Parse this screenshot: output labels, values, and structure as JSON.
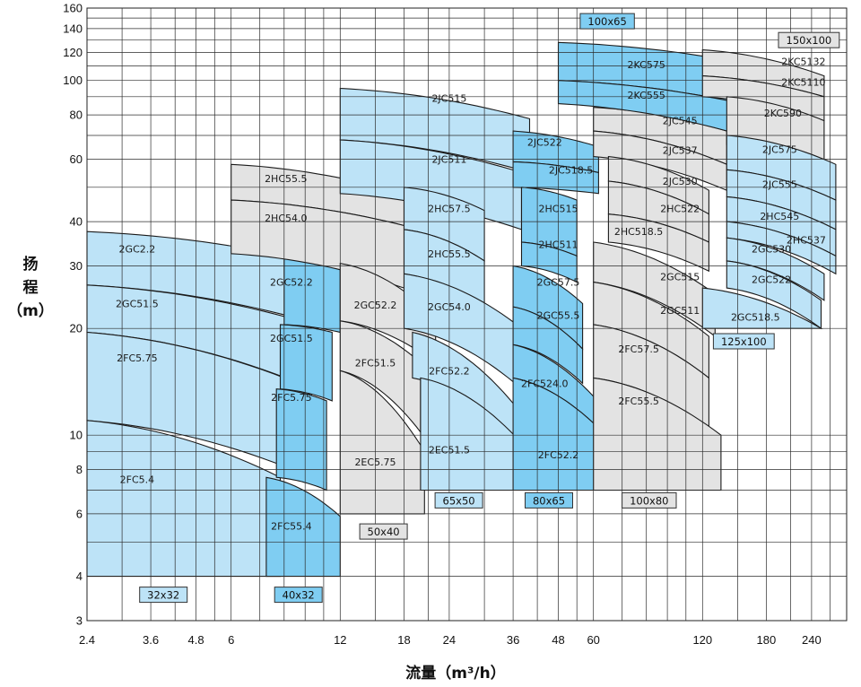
{
  "chart_data": {
    "type": "area",
    "xlabel": "流量（m³/h）",
    "ylabel_chars": [
      "扬",
      "程",
      "（m）"
    ],
    "x_scale": "log",
    "y_scale": "log",
    "xlim": [
      2.4,
      300
    ],
    "ylim": [
      3,
      160
    ],
    "x_ticks": [
      2.4,
      3.6,
      4.8,
      6,
      12,
      18,
      24,
      36,
      48,
      60,
      120,
      180,
      240
    ],
    "y_ticks": [
      3,
      4,
      6,
      8,
      10,
      20,
      30,
      40,
      60,
      80,
      100,
      120,
      140,
      160
    ],
    "x_grid": [
      2.4,
      3,
      3.6,
      4.2,
      4.8,
      5.4,
      6,
      7.2,
      8.4,
      9.6,
      10.8,
      12,
      15,
      18,
      21,
      24,
      30,
      36,
      42,
      48,
      54,
      60,
      72,
      84,
      96,
      108,
      120,
      150,
      180,
      210,
      240,
      270
    ],
    "y_grid": [
      3,
      4,
      5,
      6,
      7,
      8,
      9,
      10,
      20,
      30,
      40,
      50,
      60,
      70,
      80,
      90,
      100,
      110,
      120,
      130,
      140,
      150,
      160
    ],
    "colors": {
      "light_blue": "#bde3f7",
      "mid_blue": "#7fcdf2",
      "gray": "#e3e3e3"
    },
    "pump_sizes": [
      {
        "label": "32x32",
        "q": 3.9,
        "h": 3.55,
        "color": "light_blue"
      },
      {
        "label": "40x32",
        "q": 9.2,
        "h": 3.55,
        "color": "mid_blue"
      },
      {
        "label": "50x40",
        "q": 15.8,
        "h": 5.35,
        "color": "gray"
      },
      {
        "label": "65x50",
        "q": 25.5,
        "h": 6.55,
        "color": "light_blue"
      },
      {
        "label": "80x65",
        "q": 45.2,
        "h": 6.55,
        "color": "mid_blue"
      },
      {
        "label": "100x80",
        "q": 85.5,
        "h": 6.55,
        "color": "gray"
      },
      {
        "label": "125x100",
        "q": 156,
        "h": 18.4,
        "color": "light_blue"
      },
      {
        "label": "100x65",
        "q": 65.5,
        "h": 147,
        "color": "mid_blue"
      },
      {
        "label": "150x100",
        "q": 236,
        "h": 130,
        "color": "gray"
      }
    ],
    "series": [
      {
        "name": "2GC2.2",
        "label_q": 3.3,
        "label_h": 33.5,
        "color": "light_blue",
        "q": [
          2.4,
          10.6
        ],
        "top": [
          37.5,
          30.5
        ],
        "bottom": [
          26.5,
          20.5
        ]
      },
      {
        "name": "2GC51.5",
        "label_q": 3.3,
        "label_h": 23.5,
        "color": "light_blue",
        "q": [
          2.4,
          10.1
        ],
        "top": [
          26.5,
          20.5
        ],
        "bottom": [
          19.5,
          13.5
        ]
      },
      {
        "name": "2FC5.75",
        "label_q": 3.3,
        "label_h": 16.5,
        "color": "light_blue",
        "q": [
          2.4,
          10.0
        ],
        "top": [
          19.5,
          13.5
        ],
        "bottom": [
          11.0,
          7.6
        ]
      },
      {
        "name": "2FC5.4",
        "label_q": 3.3,
        "label_h": 7.5,
        "color": "light_blue",
        "q": [
          2.4,
          8.2
        ],
        "top": [
          11.0,
          7.6
        ],
        "bottom": [
          4.0,
          4.0
        ]
      },
      {
        "name": "2GC52.2",
        "label_q": 8.8,
        "label_h": 27.0,
        "color": "mid_blue",
        "q": [
          8.4,
          12.0
        ],
        "top": [
          32.5,
          30.5
        ],
        "bottom": [
          20.5,
          19.5
        ]
      },
      {
        "name": "2GC51.5",
        "label_q": 8.8,
        "label_h": 18.8,
        "color": "mid_blue",
        "q": [
          8.2,
          11.4
        ],
        "top": [
          20.5,
          19.5
        ],
        "bottom": [
          13.5,
          12.5
        ]
      },
      {
        "name": "2FC5.75",
        "label_q": 8.8,
        "label_h": 12.8,
        "color": "mid_blue",
        "q": [
          8.0,
          11.0
        ],
        "top": [
          13.5,
          12.5
        ],
        "bottom": [
          7.6,
          7.0
        ]
      },
      {
        "name": "2FC55.4",
        "label_q": 8.8,
        "label_h": 5.55,
        "color": "mid_blue",
        "q": [
          7.5,
          12.0
        ],
        "top": [
          7.6,
          5.9
        ],
        "bottom": [
          4.0,
          4.0
        ]
      },
      {
        "name": "2HC55.5",
        "label_q": 8.5,
        "label_h": 53.0,
        "color": "gray",
        "q": [
          6.0,
          18.0
        ],
        "top": [
          58.0,
          48.0
        ],
        "bottom": [
          46.0,
          39.0
        ]
      },
      {
        "name": "2HC54.0",
        "label_q": 8.5,
        "label_h": 41.0,
        "color": "gray",
        "q": [
          6.0,
          18.0
        ],
        "top": [
          46.0,
          39.0
        ],
        "bottom": [
          32.5,
          26.0
        ]
      },
      {
        "name": "2GC52.2",
        "label_q": 15.0,
        "label_h": 23.3,
        "color": "gray",
        "q": [
          12.0,
          22.0
        ],
        "top": [
          30.5,
          21.5
        ],
        "bottom": [
          21.0,
          16.0
        ]
      },
      {
        "name": "2FC51.5",
        "label_q": 15.0,
        "label_h": 16.0,
        "color": "gray",
        "q": [
          12.0,
          20.0
        ],
        "top": [
          21.0,
          16.0
        ],
        "bottom": [
          15.2,
          10.2
        ]
      },
      {
        "name": "2EC5.75",
        "label_q": 15.0,
        "label_h": 8.4,
        "color": "gray",
        "q": [
          12.0,
          20.5
        ],
        "top": [
          15.2,
          9.0
        ],
        "bottom": [
          6.0,
          6.0
        ]
      },
      {
        "name": "2JC515",
        "label_q": 24.0,
        "label_h": 89.0,
        "color": "light_blue",
        "q": [
          12.0,
          40.0
        ],
        "top": [
          95.0,
          78.0
        ],
        "bottom": [
          68.0,
          55.0
        ]
      },
      {
        "name": "2JC511",
        "label_q": 24.0,
        "label_h": 60.0,
        "color": "light_blue",
        "q": [
          12.0,
          38.0
        ],
        "top": [
          68.0,
          55.0
        ],
        "bottom": [
          48.0,
          38.0
        ]
      },
      {
        "name": "2HC57.5",
        "label_q": 24.0,
        "label_h": 43.5,
        "color": "light_blue",
        "q": [
          18.0,
          30.0
        ],
        "top": [
          50.0,
          43.0
        ],
        "bottom": [
          38.0,
          31.0
        ]
      },
      {
        "name": "2HC55.5",
        "label_q": 24.0,
        "label_h": 32.5,
        "color": "light_blue",
        "q": [
          18.0,
          30.0
        ],
        "top": [
          38.0,
          31.0
        ],
        "bottom": [
          28.5,
          22.5
        ]
      },
      {
        "name": "2GC54.0",
        "label_q": 24.0,
        "label_h": 23.0,
        "color": "light_blue",
        "q": [
          18.0,
          38.0
        ],
        "top": [
          28.5,
          20.0
        ],
        "bottom": [
          20.0,
          13.5
        ]
      },
      {
        "name": "2FC52.2",
        "label_q": 24.0,
        "label_h": 15.2,
        "color": "light_blue",
        "q": [
          19.0,
          38.0
        ],
        "top": [
          19.5,
          11.5
        ],
        "bottom": [
          14.5,
          9.5
        ]
      },
      {
        "name": "2EC51.5",
        "label_q": 24.0,
        "label_h": 9.1,
        "color": "light_blue",
        "q": [
          20.0,
          38.0
        ],
        "top": [
          14.5,
          9.5
        ],
        "bottom": [
          7.0,
          7.0
        ]
      },
      {
        "name": "2JC522",
        "label_q": 44.0,
        "label_h": 67.0,
        "color": "mid_blue",
        "q": [
          36.0,
          62.0
        ],
        "top": [
          72.0,
          65.0
        ],
        "bottom": [
          59.0,
          55.0
        ]
      },
      {
        "name": "2JC518.5",
        "label_q": 52.0,
        "label_h": 56.0,
        "color": "mid_blue",
        "q": [
          36.0,
          62.0
        ],
        "top": [
          59.0,
          55.0
        ],
        "bottom": [
          50.0,
          48.0
        ]
      },
      {
        "name": "2HC515",
        "label_q": 48.0,
        "label_h": 43.5,
        "color": "mid_blue",
        "q": [
          38.0,
          54.0
        ],
        "top": [
          50.0,
          46.0
        ],
        "bottom": [
          35.0,
          32.0
        ]
      },
      {
        "name": "2HC511",
        "label_q": 48.0,
        "label_h": 34.5,
        "color": "mid_blue",
        "q": [
          38.0,
          54.0
        ],
        "top": [
          35.0,
          32.0
        ],
        "bottom": [
          30.0,
          27.0
        ]
      },
      {
        "name": "2GC57.5",
        "label_q": 48.0,
        "label_h": 27.0,
        "color": "mid_blue",
        "q": [
          36.0,
          56.0
        ],
        "top": [
          30.0,
          23.5
        ],
        "bottom": [
          23.0,
          17.5
        ]
      },
      {
        "name": "2GC55.5",
        "label_q": 48.0,
        "label_h": 21.8,
        "color": "mid_blue",
        "q": [
          36.0,
          56.0
        ],
        "top": [
          23.0,
          17.5
        ],
        "bottom": [
          18.0,
          14.0
        ]
      },
      {
        "name": "2FC524.0",
        "label_q": 44.0,
        "label_h": 14.0,
        "color": "mid_blue",
        "q": [
          36.0,
          66.0
        ],
        "top": [
          18.0,
          11.5
        ],
        "bottom": [
          14.5,
          9.8
        ]
      },
      {
        "name": "2FC52.2",
        "label_q": 48.0,
        "label_h": 8.8,
        "color": "mid_blue",
        "q": [
          36.0,
          66.0
        ],
        "top": [
          14.5,
          9.8
        ],
        "bottom": [
          7.0,
          7.0
        ]
      },
      {
        "name": "2JC545",
        "label_q": 104.0,
        "label_h": 77.0,
        "color": "gray",
        "q": [
          60.0,
          140.0
        ],
        "top": [
          84.0,
          72.0
        ],
        "bottom": [
          72.0,
          58.0
        ]
      },
      {
        "name": "2JC537",
        "label_q": 104.0,
        "label_h": 63.5,
        "color": "gray",
        "q": [
          60.0,
          140.0
        ],
        "top": [
          72.0,
          58.0
        ],
        "bottom": [
          61.0,
          49.0
        ]
      },
      {
        "name": "2JC530",
        "label_q": 104.0,
        "label_h": 52.0,
        "color": "gray",
        "q": [
          66.0,
          125.0
        ],
        "top": [
          61.0,
          49.0
        ],
        "bottom": [
          52.0,
          42.0
        ]
      },
      {
        "name": "2HC522",
        "label_q": 104.0,
        "label_h": 43.5,
        "color": "gray",
        "q": [
          66.0,
          125.0
        ],
        "top": [
          52.0,
          42.0
        ],
        "bottom": [
          42.0,
          35.0
        ]
      },
      {
        "name": "2HC518.5",
        "label_q": 80.0,
        "label_h": 37.5,
        "color": "gray",
        "q": [
          66.0,
          125.0
        ],
        "top": [
          42.0,
          35.0
        ],
        "bottom": [
          35.0,
          29.0
        ]
      },
      {
        "name": "2GC515",
        "label_q": 104.0,
        "label_h": 28.0,
        "color": "gray",
        "q": [
          60.0,
          130.0
        ],
        "top": [
          35.0,
          25.0
        ],
        "bottom": [
          27.0,
          19.0
        ]
      },
      {
        "name": "2GC511",
        "label_q": 104.0,
        "label_h": 22.5,
        "color": "gray",
        "q": [
          60.0,
          125.0
        ],
        "top": [
          27.0,
          19.0
        ],
        "bottom": [
          20.5,
          14.5
        ]
      },
      {
        "name": "2FC57.5",
        "label_q": 80.0,
        "label_h": 17.5,
        "color": "gray",
        "q": [
          60.0,
          125.0
        ],
        "top": [
          20.5,
          14.5
        ],
        "bottom": [
          14.5,
          10.5
        ]
      },
      {
        "name": "2FC55.5",
        "label_q": 80.0,
        "label_h": 12.5,
        "color": "gray",
        "q": [
          60.0,
          135.0
        ],
        "top": [
          14.5,
          10.0
        ],
        "bottom": [
          7.0,
          7.0
        ]
      },
      {
        "name": "2KC575",
        "label_q": 84.0,
        "label_h": 111.0,
        "color": "mid_blue",
        "q": [
          48.0,
          155.0
        ],
        "top": [
          128.0,
          112.0
        ],
        "bottom": [
          100.0,
          86.0
        ]
      },
      {
        "name": "2KC555",
        "label_q": 84.0,
        "label_h": 91.0,
        "color": "mid_blue",
        "q": [
          48.0,
          155.0
        ],
        "top": [
          100.0,
          86.0
        ],
        "bottom": [
          86.0,
          70.0
        ]
      },
      {
        "name": "2KC5132",
        "label_q": 228.0,
        "label_h": 113.0,
        "color": "gray",
        "q": [
          120.0,
          260.0
        ],
        "top": [
          122.0,
          103.0
        ],
        "bottom": [
          103.0,
          90.0
        ]
      },
      {
        "name": "2KC5110",
        "label_q": 228.0,
        "label_h": 99.0,
        "color": "gray",
        "q": [
          120.0,
          260.0
        ],
        "top": [
          103.0,
          90.0
        ],
        "bottom": [
          90.0,
          77.0
        ]
      },
      {
        "name": "2KC590",
        "label_q": 200.0,
        "label_h": 81.0,
        "color": "gray",
        "q": [
          140.0,
          260.0
        ],
        "top": [
          90.0,
          77.0
        ],
        "bottom": [
          66.0,
          56.0
        ]
      },
      {
        "name": "2JC575",
        "label_q": 196.0,
        "label_h": 64.0,
        "color": "light_blue",
        "q": [
          140.0,
          280.0
        ],
        "top": [
          70.0,
          58.0
        ],
        "bottom": [
          56.0,
          46.0
        ]
      },
      {
        "name": "2JC555",
        "label_q": 196.0,
        "label_h": 51.0,
        "color": "light_blue",
        "q": [
          140.0,
          280.0
        ],
        "top": [
          56.0,
          46.0
        ],
        "bottom": [
          47.0,
          38.0
        ]
      },
      {
        "name": "2HC545",
        "label_q": 196.0,
        "label_h": 41.5,
        "color": "light_blue",
        "q": [
          140.0,
          280.0
        ],
        "top": [
          47.0,
          38.0
        ],
        "bottom": [
          40.0,
          32.0
        ]
      },
      {
        "name": "2HC537",
        "label_q": 232.0,
        "label_h": 35.5,
        "color": "light_blue",
        "q": [
          140.0,
          280.0
        ],
        "top": [
          40.0,
          32.0
        ],
        "bottom": [
          36.0,
          28.5
        ]
      },
      {
        "name": "2GC530",
        "label_q": 186.0,
        "label_h": 33.5,
        "color": "light_blue",
        "q": [
          140.0,
          260.0
        ],
        "top": [
          36.0,
          28.5
        ],
        "bottom": [
          31.0,
          24.0
        ]
      },
      {
        "name": "2GC522",
        "label_q": 186.0,
        "label_h": 27.5,
        "color": "light_blue",
        "q": [
          140.0,
          255.0
        ],
        "top": [
          31.0,
          24.0
        ],
        "bottom": [
          26.0,
          20.0
        ]
      },
      {
        "name": "2GC518.5",
        "label_q": 168.0,
        "label_h": 21.5,
        "color": "light_blue",
        "q": [
          120.0,
          255.0
        ],
        "top": [
          26.0,
          20.0
        ],
        "bottom": [
          20.0,
          20.0
        ]
      }
    ]
  }
}
